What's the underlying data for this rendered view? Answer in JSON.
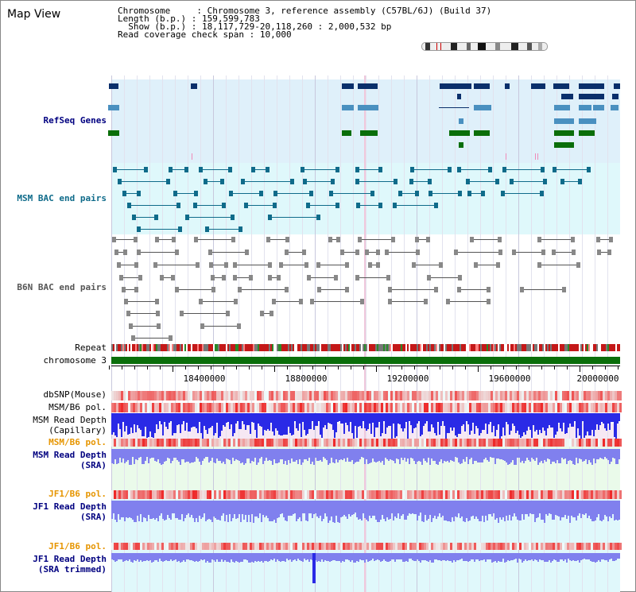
{
  "page": {
    "title": "Map View"
  },
  "info": {
    "chromosome_key": "Chromosome",
    "chromosome_val": "Chromosome 3, reference assembly (C57BL/6J) (Build 37)",
    "length_key": "Length (b.p.)",
    "length_val": "159,599,783",
    "show_key": "Show (b.p.)",
    "show_val": "18,117,729-20,118,260 : 2,000,532 bp",
    "span_key": "Read coverage check span",
    "span_val": "10,000"
  },
  "tracks": {
    "refseq": "RefSeq Genes",
    "msm_bac": "MSM BAC end pairs",
    "b6n_bac": "B6N BAC end pairs",
    "repeat": "Repeat",
    "chromosome": "chromosome 3",
    "dbsnp": "dbSNP(Mouse)",
    "msm_b6_pol_1": "MSM/B6 pol.",
    "msm_depth_cap_1": "MSM Read Depth",
    "msm_depth_cap_2": "(Capillary)",
    "msm_b6_pol_2": "MSM/B6 pol.",
    "msm_depth_sra_1": "MSM Read Depth",
    "msm_depth_sra_2": "(SRA)",
    "jf1_pol_1": "JF1/B6 pol.",
    "jf1_depth_1": "JF1 Read Depth",
    "jf1_depth_2": "(SRA)",
    "jf1_pol_2": "JF1/B6 pol.",
    "jf1_depth_trim_1": "JF1 Read Depth",
    "jf1_depth_trim_2": "(SRA trimmed)"
  },
  "scale": {
    "ticks": [
      "18400000",
      "18800000",
      "19200000",
      "19600000",
      "20000000"
    ]
  },
  "colors": {
    "refseq_bg": "#dff0fa",
    "msm_bg": "#dff8fb",
    "navy": "#0a2f6b",
    "blue": "#4a90c0",
    "green": "#0a6e0a",
    "msm_feat": "#0f6b8a",
    "b6n_feat": "#555555",
    "depth_blue": "#2a2ae6",
    "sra_blue": "#8080ee",
    "red": "#ee2222",
    "orange_label": "#e69500",
    "label_navy": "#000080",
    "label_teal": "#0f6b8a",
    "label_gray": "#555555"
  }
}
